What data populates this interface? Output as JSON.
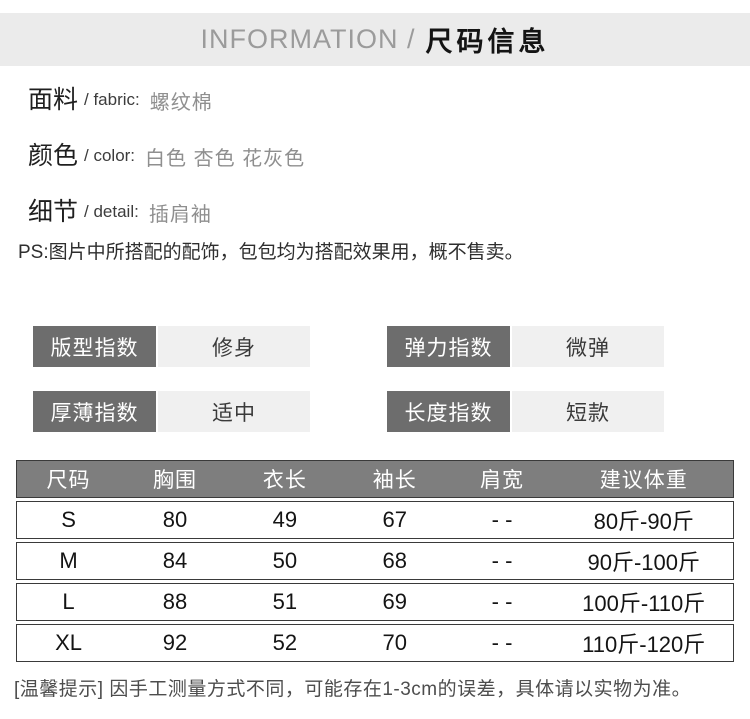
{
  "header": {
    "title_en": "INFORMATION /",
    "title_zh": "尺码信息"
  },
  "info": {
    "rows": [
      {
        "label_zh": "面料",
        "label_en": "/ fabric:",
        "value": "螺纹棉"
      },
      {
        "label_zh": "颜色",
        "label_en": "/ color:",
        "value": "白色 杏色 花灰色"
      },
      {
        "label_zh": "细节",
        "label_en": "/ detail:",
        "value": "插肩袖"
      }
    ],
    "ps_note": "PS:图片中所搭配的配饰，包包均为搭配效果用，概不售卖。"
  },
  "badges": [
    {
      "label": "版型指数",
      "value": "修身"
    },
    {
      "label": "弹力指数",
      "value": "微弹"
    },
    {
      "label": "厚薄指数",
      "value": "适中"
    },
    {
      "label": "长度指数",
      "value": "短款"
    }
  ],
  "size_table": {
    "headers": [
      "尺码",
      "胸围",
      "衣长",
      "袖长",
      "肩宽",
      "建议体重"
    ],
    "rows": [
      [
        "S",
        "80",
        "49",
        "67",
        "- -",
        "80斤-90斤"
      ],
      [
        "M",
        "84",
        "50",
        "68",
        "- -",
        "90斤-100斤"
      ],
      [
        "L",
        "88",
        "51",
        "69",
        "- -",
        "100斤-110斤"
      ],
      [
        "XL",
        "92",
        "52",
        "70",
        "- -",
        "110斤-120斤"
      ]
    ]
  },
  "footer": {
    "note": "[温馨提示] 因手工测量方式不同，可能存在1-3cm的误差，具体请以实物为准。"
  },
  "colors": {
    "header_bar_bg": "#ebebeb",
    "badge_label_bg": "#6d6d6d",
    "badge_value_bg": "#f0f0f0",
    "table_header_bg": "#7e7e7e",
    "table_border": "#3a3a3a",
    "muted_value_text": "#8f8f8f"
  }
}
